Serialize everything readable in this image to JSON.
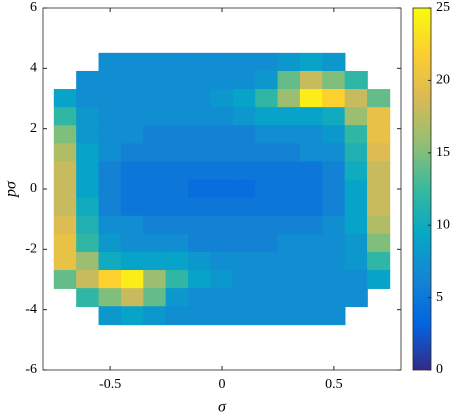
{
  "chart_data": {
    "type": "heatmap",
    "xlabel": "σ",
    "ylabel": "pσ",
    "xlim": [
      -0.8,
      0.8
    ],
    "ylim": [
      -6,
      6
    ],
    "xticks": [
      -0.5,
      0,
      0.5
    ],
    "yticks": [
      -6,
      -4,
      -2,
      0,
      2,
      4,
      6
    ],
    "zlim": [
      0,
      25
    ],
    "zticks": [
      0,
      5,
      10,
      15,
      20,
      25
    ],
    "colormap": [
      "#352a87",
      "#0363e1",
      "#1485d4",
      "#06a7c6",
      "#38b99e",
      "#92bf73",
      "#d9ba56",
      "#fcce2e",
      "#f9fb0e"
    ],
    "x": [
      -0.7,
      -0.6,
      -0.5,
      -0.4,
      -0.3,
      -0.2,
      -0.1,
      0,
      0.1,
      0.2,
      0.3,
      0.4,
      0.5,
      0.6,
      0.7
    ],
    "y": [
      4.2,
      3.6,
      3.0,
      2.4,
      1.8,
      1.2,
      0.6,
      0,
      -0.6,
      -1.2,
      -1.8,
      -2.4,
      -3.0,
      -3.6,
      -4.2
    ],
    "z": [
      [
        null,
        null,
        7,
        7,
        7,
        7,
        7,
        7,
        7,
        7,
        8,
        9,
        8,
        null,
        null
      ],
      [
        null,
        7,
        7,
        7,
        7,
        7,
        7,
        7,
        7,
        8,
        14,
        18,
        15,
        12,
        null
      ],
      [
        9,
        7,
        7,
        7,
        7,
        7,
        7,
        8,
        9,
        12,
        16,
        24,
        22,
        18,
        14
      ],
      [
        12,
        8,
        7,
        7,
        7,
        7,
        7,
        7,
        8,
        9,
        9,
        9,
        10,
        16,
        20
      ],
      [
        15,
        8,
        7,
        7,
        6,
        6,
        6,
        6,
        6,
        7,
        7,
        7,
        8,
        12,
        20
      ],
      [
        17,
        9,
        7,
        6,
        6,
        6,
        6,
        6,
        6,
        6,
        6,
        7,
        7,
        11,
        19
      ],
      [
        18,
        9,
        6,
        5,
        5,
        5,
        5,
        5,
        5,
        5,
        5,
        5,
        6,
        10,
        18
      ],
      [
        18,
        9,
        6,
        5,
        5,
        5,
        4,
        4,
        4,
        5,
        5,
        5,
        6,
        9,
        18
      ],
      [
        18,
        10,
        6,
        5,
        5,
        5,
        5,
        5,
        5,
        5,
        5,
        5,
        6,
        9,
        18
      ],
      [
        19,
        11,
        7,
        7,
        6,
        6,
        6,
        6,
        6,
        6,
        6,
        6,
        7,
        9,
        17
      ],
      [
        20,
        12,
        8,
        7,
        7,
        7,
        6,
        6,
        6,
        6,
        7,
        7,
        7,
        8,
        15
      ],
      [
        20,
        16,
        10,
        9,
        9,
        9,
        8,
        7,
        7,
        7,
        7,
        7,
        7,
        8,
        12
      ],
      [
        14,
        18,
        22,
        24,
        16,
        12,
        9,
        8,
        7,
        7,
        7,
        7,
        7,
        7,
        9
      ],
      [
        null,
        12,
        15,
        18,
        14,
        8,
        7,
        7,
        7,
        7,
        7,
        7,
        7,
        7,
        null
      ],
      [
        null,
        null,
        8,
        9,
        8,
        7,
        7,
        7,
        7,
        7,
        7,
        7,
        7,
        null,
        null
      ]
    ]
  }
}
